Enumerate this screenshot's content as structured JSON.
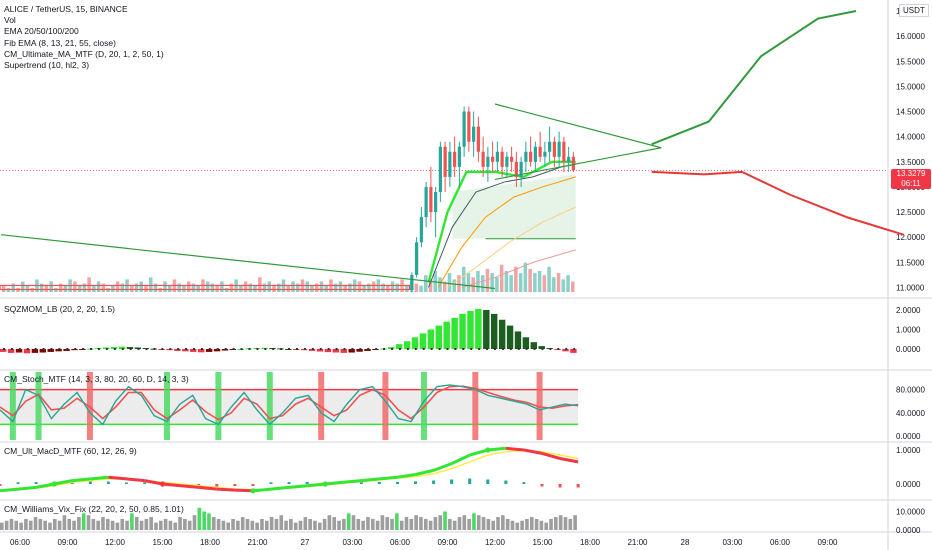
{
  "header": {
    "symbol_line": "ALICE / TetherUS, 15, BINANCE",
    "indicators": [
      "Vol",
      "EMA 20/50/100/200",
      "Fib EMA (8, 13, 21, 55, close)",
      "CM_Ultimate_MA_MTF (D, 20, 1, 2, 50, 1)",
      "Supertrend (10, hl2, 3)"
    ]
  },
  "currency_badge": "USDT",
  "price_tag": {
    "price": "13.3279",
    "countdown": "06:11"
  },
  "panes": {
    "sqzmom": {
      "label": "SQZMOM_LB (20, 2, 20, 1.5)",
      "ticks": [
        "2.0000",
        "1.0000",
        "0.0000"
      ]
    },
    "stoch": {
      "label": "CM_Stoch_MTF (14, 3, 3, 80, 20, 60, D, 14, 3, 3)",
      "ticks": [
        "80.0000",
        "40.0000",
        "0.0000"
      ]
    },
    "macd": {
      "label": "CM_Ult_MacD_MTF (60, 12, 26, 9)",
      "ticks": [
        "1.0000",
        "0.0000"
      ]
    },
    "vix": {
      "label": "CM_Williams_Vix_Fix (22, 20, 2, 50, 0.85, 1.01)",
      "ticks": [
        "10.0000",
        "0.0000"
      ]
    }
  },
  "colors": {
    "up": "#26a69a",
    "down": "#ef5350",
    "trend": "#2e9a3a",
    "forecast_down": "#e53935",
    "bright_green": "#33e633",
    "bright_red": "#f23645"
  },
  "chart_data": {
    "type": "candlestick",
    "x_ticks": [
      "06:00",
      "09:00",
      "12:00",
      "15:00",
      "18:00",
      "21:00",
      "27",
      "03:00",
      "06:00",
      "09:00",
      "12:00",
      "15:00",
      "18:00",
      "21:00",
      "28",
      "03:00",
      "06:00",
      "09:00"
    ],
    "price_axis": {
      "ticks": [
        "16.5000",
        "16.0000",
        "15.5000",
        "15.0000",
        "14.5000",
        "14.0000",
        "13.5000",
        "13.0000",
        "12.5000",
        "12.0000",
        "11.5000",
        "11.0000"
      ],
      "range": [
        10.95,
        16.6
      ]
    },
    "last_price": 13.3279,
    "breakout": {
      "triangle_top": [
        [
          10.0,
          14.65
        ],
        [
          13.5,
          13.78
        ]
      ],
      "triangle_bottom": [
        [
          10.0,
          13.15
        ],
        [
          13.5,
          13.78
        ]
      ],
      "forecast_up": [
        [
          13.3,
          13.85
        ],
        [
          14.5,
          14.3
        ],
        [
          15.6,
          15.6
        ],
        [
          16.8,
          16.35
        ],
        [
          17.6,
          16.5
        ]
      ],
      "forecast_down": [
        [
          13.3,
          13.3
        ],
        [
          14.4,
          13.25
        ],
        [
          15.2,
          13.3
        ],
        [
          16.2,
          12.85
        ],
        [
          17.4,
          12.4
        ],
        [
          18.6,
          12.05
        ]
      ],
      "long_trendline": [
        [
          -0.4,
          12.05
        ],
        [
          10.0,
          10.98
        ]
      ]
    },
    "candles": [
      [
        8.25,
        10.95,
        11.3,
        10.9,
        11.25
      ],
      [
        8.35,
        11.25,
        12.0,
        11.2,
        11.9
      ],
      [
        8.45,
        11.9,
        12.6,
        11.8,
        12.4
      ],
      [
        8.55,
        12.4,
        13.1,
        12.2,
        13.0
      ],
      [
        8.65,
        13.0,
        13.4,
        12.3,
        12.5
      ],
      [
        8.75,
        12.5,
        13.0,
        12.0,
        12.9
      ],
      [
        8.85,
        12.9,
        13.9,
        12.7,
        13.8
      ],
      [
        8.95,
        13.8,
        13.9,
        12.9,
        13.2
      ],
      [
        9.05,
        13.2,
        13.9,
        13.0,
        13.7
      ],
      [
        9.15,
        13.7,
        14.0,
        13.2,
        13.4
      ],
      [
        9.25,
        13.4,
        13.9,
        13.0,
        13.8
      ],
      [
        9.35,
        13.8,
        14.6,
        13.6,
        14.5
      ],
      [
        9.45,
        14.5,
        14.6,
        13.7,
        13.9
      ],
      [
        9.55,
        13.9,
        14.5,
        13.6,
        14.2
      ],
      [
        9.65,
        14.2,
        14.4,
        13.5,
        13.7
      ],
      [
        9.75,
        13.7,
        14.0,
        13.2,
        13.4
      ],
      [
        9.85,
        13.4,
        13.8,
        13.1,
        13.6
      ],
      [
        9.95,
        13.6,
        13.9,
        13.3,
        13.5
      ],
      [
        10.05,
        13.5,
        13.9,
        13.3,
        13.7
      ],
      [
        10.15,
        13.7,
        13.8,
        13.2,
        13.4
      ],
      [
        10.25,
        13.4,
        13.7,
        13.2,
        13.6
      ],
      [
        10.35,
        13.6,
        13.8,
        13.3,
        13.5
      ],
      [
        10.45,
        13.5,
        13.7,
        13.0,
        13.2
      ],
      [
        10.55,
        13.2,
        13.6,
        13.0,
        13.5
      ],
      [
        10.65,
        13.5,
        13.9,
        13.3,
        13.7
      ],
      [
        10.75,
        13.7,
        14.0,
        13.4,
        13.5
      ],
      [
        10.85,
        13.5,
        13.9,
        13.3,
        13.8
      ],
      [
        10.95,
        13.8,
        14.1,
        13.5,
        13.6
      ],
      [
        11.05,
        13.6,
        13.9,
        13.4,
        13.7
      ],
      [
        11.15,
        13.7,
        14.2,
        13.5,
        13.9
      ],
      [
        11.25,
        13.9,
        14.0,
        13.4,
        13.6
      ],
      [
        11.35,
        13.6,
        14.1,
        13.4,
        13.9
      ],
      [
        11.45,
        13.9,
        14.0,
        13.3,
        13.5
      ],
      [
        11.55,
        13.5,
        13.8,
        13.3,
        13.6
      ],
      [
        11.65,
        13.6,
        13.7,
        13.3,
        13.33
      ]
    ],
    "flat_range": {
      "start_x": -0.6,
      "end_x": 8.2,
      "low": 10.96,
      "high": 11.04
    },
    "volume": [
      3,
      2,
      4,
      2,
      5,
      3,
      2,
      6,
      4,
      3,
      5,
      2,
      4,
      3,
      6,
      5,
      3,
      4,
      7,
      3,
      5,
      4,
      2,
      3,
      5,
      4,
      6,
      3,
      4,
      5,
      3,
      7,
      4,
      2,
      5,
      3,
      6,
      4,
      3,
      5,
      4,
      3,
      6,
      5,
      4,
      3,
      5,
      2,
      4,
      6,
      3,
      5,
      4,
      3,
      7,
      4,
      5,
      3,
      4,
      6,
      3,
      5,
      4,
      6,
      5,
      3,
      4,
      5,
      3,
      6,
      4,
      5,
      3,
      4,
      6,
      5,
      3,
      4,
      5,
      6,
      4,
      3,
      5,
      4,
      6,
      3,
      5,
      4,
      3,
      8,
      6,
      10,
      7,
      5,
      9,
      6,
      8,
      12,
      9,
      7,
      10,
      8,
      11,
      9,
      7,
      13,
      10,
      8,
      12,
      9,
      14,
      11,
      9,
      10,
      8,
      12,
      7,
      9,
      6,
      8,
      5
    ],
    "sqzmom": [
      -0.15,
      -0.2,
      -0.18,
      -0.22,
      -0.2,
      -0.18,
      -0.15,
      -0.12,
      -0.1,
      -0.06,
      -0.02,
      0.02,
      0.05,
      0.08,
      0.1,
      0.12,
      0.1,
      0.08,
      0.05,
      0.02,
      -0.02,
      -0.06,
      -0.1,
      -0.12,
      -0.15,
      -0.17,
      -0.15,
      -0.12,
      -0.08,
      -0.04,
      0.0,
      0.03,
      0.05,
      0.06,
      0.05,
      0.03,
      0.0,
      -0.03,
      -0.06,
      -0.1,
      -0.13,
      -0.16,
      -0.18,
      -0.2,
      -0.18,
      -0.14,
      -0.1,
      -0.05,
      0.02,
      0.1,
      0.25,
      0.4,
      0.6,
      0.8,
      1.0,
      1.2,
      1.4,
      1.6,
      1.8,
      1.95,
      2.05,
      2.0,
      1.8,
      1.5,
      1.2,
      0.9,
      0.6,
      0.35,
      0.15,
      0.05,
      -0.05,
      -0.12,
      -0.2
    ],
    "stoch": {
      "k": [
        45,
        25,
        80,
        70,
        30,
        55,
        75,
        40,
        20,
        60,
        85,
        70,
        35,
        25,
        55,
        70,
        30,
        20,
        50,
        75,
        45,
        20,
        40,
        65,
        70,
        40,
        25,
        55,
        80,
        85,
        60,
        30,
        25,
        60,
        85,
        88,
        85,
        80,
        70,
        65,
        60,
        55,
        45,
        50,
        55,
        52
      ],
      "d": [
        50,
        35,
        60,
        72,
        45,
        48,
        65,
        50,
        30,
        50,
        75,
        75,
        45,
        30,
        45,
        62,
        42,
        28,
        40,
        65,
        55,
        30,
        35,
        55,
        65,
        50,
        35,
        45,
        70,
        80,
        70,
        45,
        30,
        50,
        75,
        85,
        86,
        82,
        75,
        68,
        62,
        58,
        50,
        48,
        52,
        54
      ]
    },
    "macd": {
      "line": [
        -0.2,
        -0.15,
        -0.1,
        0.0,
        0.1,
        0.15,
        0.2,
        0.15,
        0.1,
        0.0,
        -0.05,
        -0.1,
        -0.15,
        -0.18,
        -0.2,
        -0.15,
        -0.1,
        -0.05,
        0.0,
        0.05,
        0.1,
        0.15,
        0.2,
        0.28,
        0.4,
        0.6,
        0.85,
        1.0,
        1.05,
        1.0,
        0.9,
        0.75,
        0.65
      ],
      "signal": [
        -0.18,
        -0.16,
        -0.12,
        -0.05,
        0.05,
        0.1,
        0.15,
        0.15,
        0.1,
        0.05,
        0.0,
        -0.05,
        -0.1,
        -0.15,
        -0.17,
        -0.16,
        -0.12,
        -0.08,
        -0.03,
        0.02,
        0.07,
        0.12,
        0.17,
        0.22,
        0.3,
        0.45,
        0.65,
        0.85,
        0.95,
        0.98,
        0.95,
        0.85,
        0.75
      ]
    },
    "vix": [
      4,
      5,
      6,
      5,
      4,
      6,
      5,
      7,
      6,
      5,
      4,
      6,
      5,
      8,
      6,
      5,
      7,
      9,
      8,
      6,
      5,
      7,
      6,
      5,
      4,
      6,
      5,
      9,
      7,
      5,
      6,
      7,
      4,
      5,
      6,
      5,
      4,
      7,
      6,
      5,
      8,
      12,
      10,
      9,
      7,
      6,
      5,
      4,
      6,
      5,
      7,
      6,
      5,
      4,
      6,
      5,
      7,
      6,
      8,
      5,
      6,
      4,
      5,
      7,
      6,
      5,
      4,
      6,
      8,
      7,
      5,
      6,
      9,
      8,
      6,
      5,
      7,
      6,
      5,
      8,
      7,
      6,
      9,
      5,
      7,
      6,
      8,
      7,
      6,
      5,
      7,
      8,
      10,
      6,
      5,
      7,
      8,
      6,
      9,
      8,
      7,
      6,
      5,
      7,
      8,
      6,
      5,
      4,
      5,
      6,
      7,
      6,
      5,
      4,
      6,
      7,
      8,
      7,
      6,
      8
    ]
  }
}
